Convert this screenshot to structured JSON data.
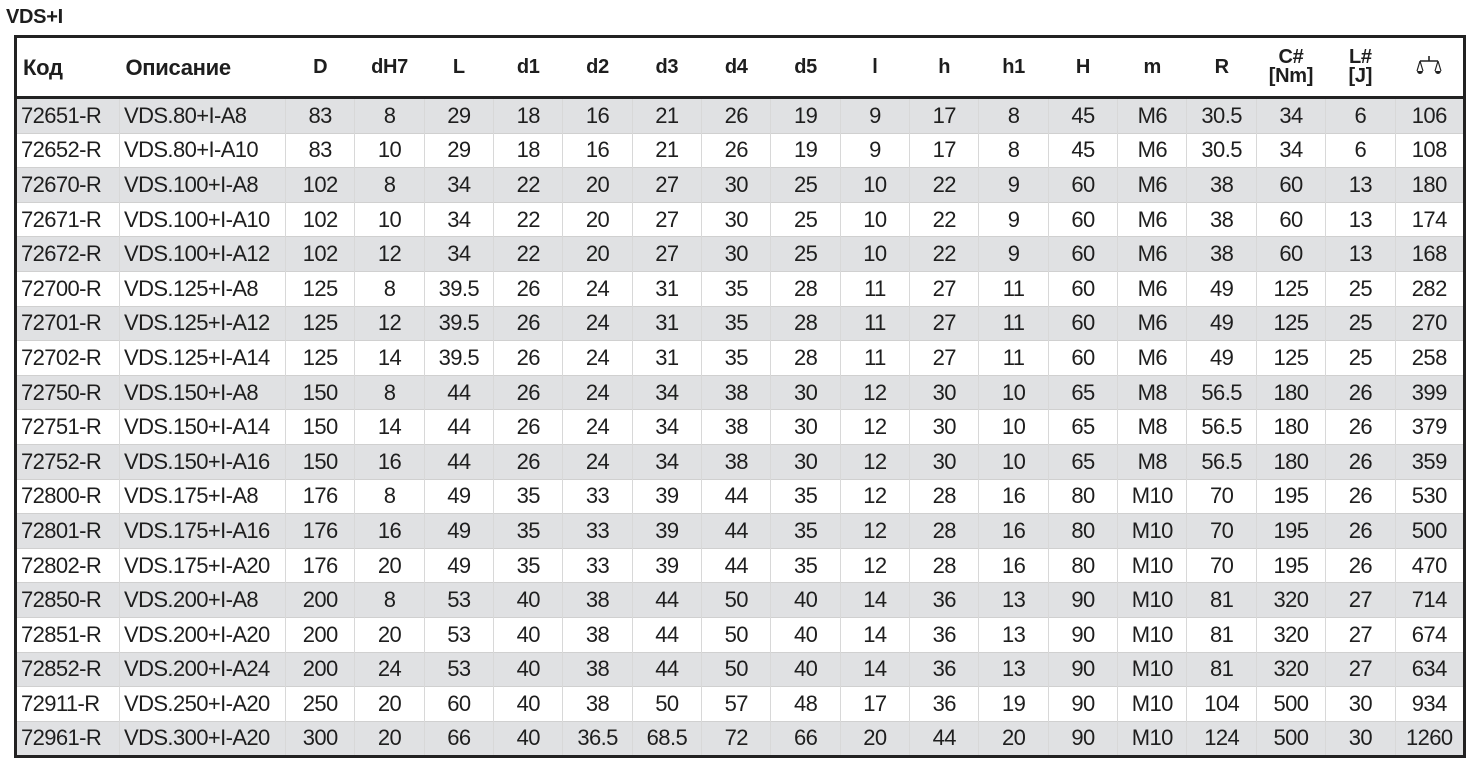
{
  "title": "VDS+I",
  "table": {
    "headers": [
      "Код",
      "Описание",
      "D",
      "dH7",
      "L",
      "d1",
      "d2",
      "d3",
      "d4",
      "d5",
      "l",
      "h",
      "h1",
      "H",
      "m",
      "R",
      "C# [Nm]",
      "L# [J]"
    ],
    "weight_icon": "scale-icon",
    "rows": [
      [
        "72651-R",
        "VDS.80+I-A8",
        "83",
        "8",
        "29",
        "18",
        "16",
        "21",
        "26",
        "19",
        "9",
        "17",
        "8",
        "45",
        "M6",
        "30.5",
        "34",
        "6",
        "106"
      ],
      [
        "72652-R",
        "VDS.80+I-A10",
        "83",
        "10",
        "29",
        "18",
        "16",
        "21",
        "26",
        "19",
        "9",
        "17",
        "8",
        "45",
        "M6",
        "30.5",
        "34",
        "6",
        "108"
      ],
      [
        "72670-R",
        "VDS.100+I-A8",
        "102",
        "8",
        "34",
        "22",
        "20",
        "27",
        "30",
        "25",
        "10",
        "22",
        "9",
        "60",
        "M6",
        "38",
        "60",
        "13",
        "180"
      ],
      [
        "72671-R",
        "VDS.100+I-A10",
        "102",
        "10",
        "34",
        "22",
        "20",
        "27",
        "30",
        "25",
        "10",
        "22",
        "9",
        "60",
        "M6",
        "38",
        "60",
        "13",
        "174"
      ],
      [
        "72672-R",
        "VDS.100+I-A12",
        "102",
        "12",
        "34",
        "22",
        "20",
        "27",
        "30",
        "25",
        "10",
        "22",
        "9",
        "60",
        "M6",
        "38",
        "60",
        "13",
        "168"
      ],
      [
        "72700-R",
        "VDS.125+I-A8",
        "125",
        "8",
        "39.5",
        "26",
        "24",
        "31",
        "35",
        "28",
        "11",
        "27",
        "11",
        "60",
        "M6",
        "49",
        "125",
        "25",
        "282"
      ],
      [
        "72701-R",
        "VDS.125+I-A12",
        "125",
        "12",
        "39.5",
        "26",
        "24",
        "31",
        "35",
        "28",
        "11",
        "27",
        "11",
        "60",
        "M6",
        "49",
        "125",
        "25",
        "270"
      ],
      [
        "72702-R",
        "VDS.125+I-A14",
        "125",
        "14",
        "39.5",
        "26",
        "24",
        "31",
        "35",
        "28",
        "11",
        "27",
        "11",
        "60",
        "M6",
        "49",
        "125",
        "25",
        "258"
      ],
      [
        "72750-R",
        "VDS.150+I-A8",
        "150",
        "8",
        "44",
        "26",
        "24",
        "34",
        "38",
        "30",
        "12",
        "30",
        "10",
        "65",
        "M8",
        "56.5",
        "180",
        "26",
        "399"
      ],
      [
        "72751-R",
        "VDS.150+I-A14",
        "150",
        "14",
        "44",
        "26",
        "24",
        "34",
        "38",
        "30",
        "12",
        "30",
        "10",
        "65",
        "M8",
        "56.5",
        "180",
        "26",
        "379"
      ],
      [
        "72752-R",
        "VDS.150+I-A16",
        "150",
        "16",
        "44",
        "26",
        "24",
        "34",
        "38",
        "30",
        "12",
        "30",
        "10",
        "65",
        "M8",
        "56.5",
        "180",
        "26",
        "359"
      ],
      [
        "72800-R",
        "VDS.175+I-A8",
        "176",
        "8",
        "49",
        "35",
        "33",
        "39",
        "44",
        "35",
        "12",
        "28",
        "16",
        "80",
        "M10",
        "70",
        "195",
        "26",
        "530"
      ],
      [
        "72801-R",
        "VDS.175+I-A16",
        "176",
        "16",
        "49",
        "35",
        "33",
        "39",
        "44",
        "35",
        "12",
        "28",
        "16",
        "80",
        "M10",
        "70",
        "195",
        "26",
        "500"
      ],
      [
        "72802-R",
        "VDS.175+I-A20",
        "176",
        "20",
        "49",
        "35",
        "33",
        "39",
        "44",
        "35",
        "12",
        "28",
        "16",
        "80",
        "M10",
        "70",
        "195",
        "26",
        "470"
      ],
      [
        "72850-R",
        "VDS.200+I-A8",
        "200",
        "8",
        "53",
        "40",
        "38",
        "44",
        "50",
        "40",
        "14",
        "36",
        "13",
        "90",
        "M10",
        "81",
        "320",
        "27",
        "714"
      ],
      [
        "72851-R",
        "VDS.200+I-A20",
        "200",
        "20",
        "53",
        "40",
        "38",
        "44",
        "50",
        "40",
        "14",
        "36",
        "13",
        "90",
        "M10",
        "81",
        "320",
        "27",
        "674"
      ],
      [
        "72852-R",
        "VDS.200+I-A24",
        "200",
        "24",
        "53",
        "40",
        "38",
        "44",
        "50",
        "40",
        "14",
        "36",
        "13",
        "90",
        "M10",
        "81",
        "320",
        "27",
        "634"
      ],
      [
        "72911-R",
        "VDS.250+I-A20",
        "250",
        "20",
        "60",
        "40",
        "38",
        "50",
        "57",
        "48",
        "17",
        "36",
        "19",
        "90",
        "M10",
        "104",
        "500",
        "30",
        "934"
      ],
      [
        "72961-R",
        "VDS.300+I-A20",
        "300",
        "20",
        "66",
        "40",
        "36.5",
        "68.5",
        "72",
        "66",
        "20",
        "44",
        "20",
        "90",
        "M10",
        "124",
        "500",
        "30",
        "1260"
      ]
    ]
  }
}
